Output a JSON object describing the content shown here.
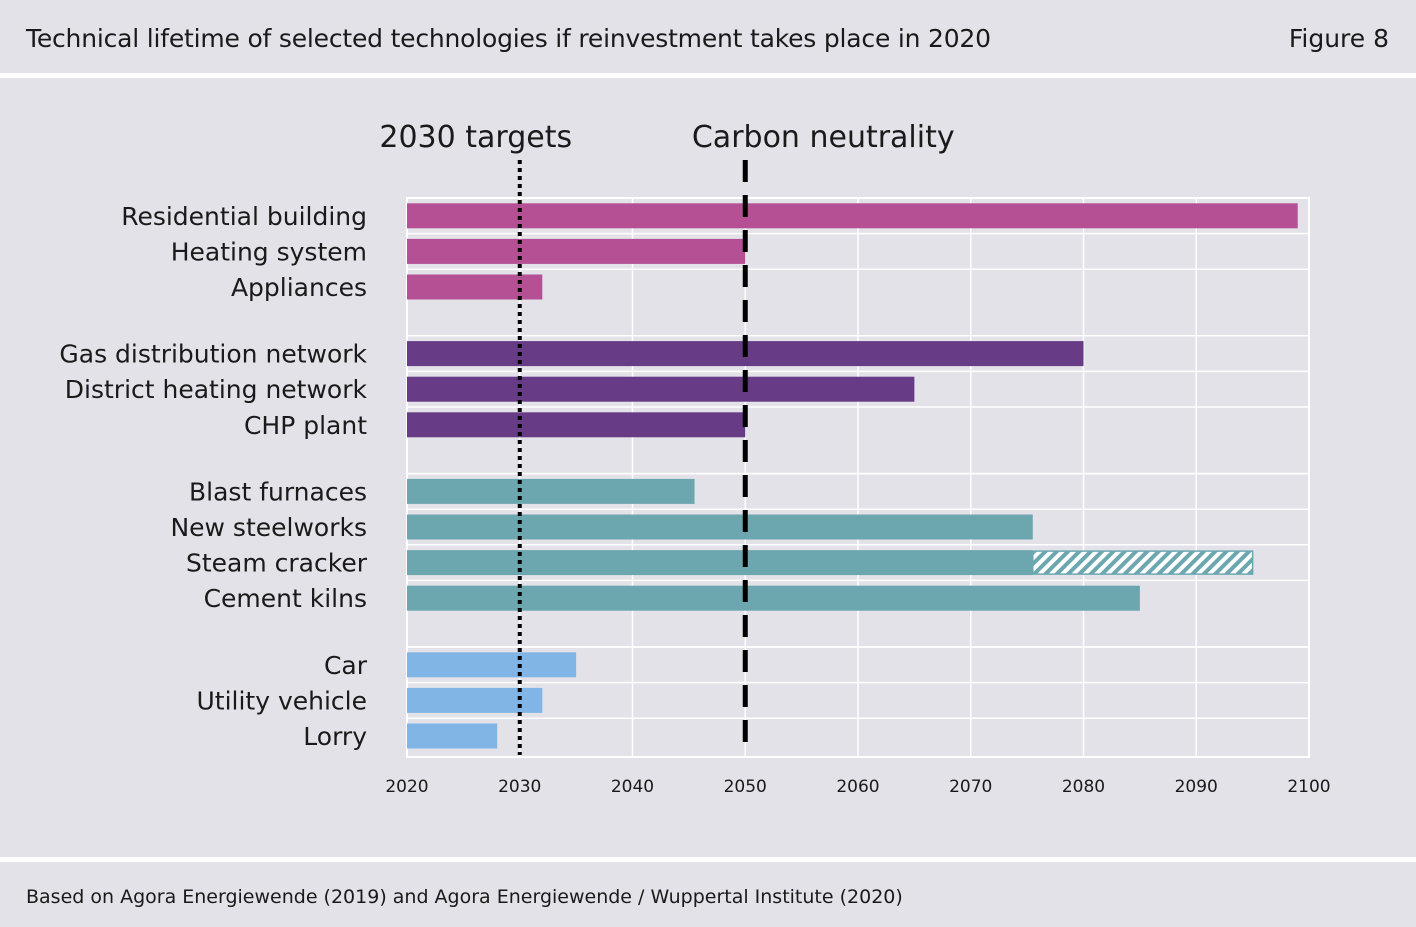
{
  "header": {
    "title": "Technical lifetime of selected technologies if reinvestment takes place in 2020",
    "figure_label": "Figure 8"
  },
  "footer": {
    "source": "Based on Agora Energiewende (2019) and Agora Energiewende / Wuppertal Institute (2020)"
  },
  "chart_data": {
    "type": "bar",
    "orientation": "horizontal",
    "title": "Technical lifetime of selected technologies if reinvestment takes place in 2020",
    "xlim": [
      2020,
      2100
    ],
    "xticks": [
      2020,
      2030,
      2040,
      2050,
      2060,
      2070,
      2080,
      2090,
      2100
    ],
    "grid": true,
    "groups": [
      {
        "color": "#b55095",
        "items": [
          {
            "label": "Residential building",
            "start": 2020,
            "end": 2099
          },
          {
            "label": "Heating system",
            "start": 2020,
            "end": 2050
          },
          {
            "label": "Appliances",
            "start": 2020,
            "end": 2032
          }
        ]
      },
      {
        "color": "#673b86",
        "items": [
          {
            "label": "Gas distribution network",
            "start": 2020,
            "end": 2080
          },
          {
            "label": "District heating network",
            "start": 2020,
            "end": 2065
          },
          {
            "label": "CHP plant",
            "start": 2020,
            "end": 2050
          }
        ]
      },
      {
        "color": "#6ca7b0",
        "items": [
          {
            "label": "Blast furnaces",
            "start": 2020,
            "end": 2045.5
          },
          {
            "label": "New steelworks",
            "start": 2020,
            "end": 2075.5
          },
          {
            "label": "Steam cracker",
            "start": 2020,
            "end": 2075.5,
            "extension_end": 2095
          },
          {
            "label": "Cement kilns",
            "start": 2020,
            "end": 2085
          }
        ]
      },
      {
        "color": "#80b5e6",
        "items": [
          {
            "label": "Car",
            "start": 2020,
            "end": 2035
          },
          {
            "label": "Utility vehicle",
            "start": 2020,
            "end": 2032
          },
          {
            "label": "Lorry",
            "start": 2020,
            "end": 2028
          }
        ]
      }
    ],
    "reference_lines": [
      {
        "label": "2030 targets",
        "x": 2030,
        "style": "dotted"
      },
      {
        "label": "Carbon neutrality",
        "x": 2050,
        "style": "dashed"
      }
    ]
  }
}
